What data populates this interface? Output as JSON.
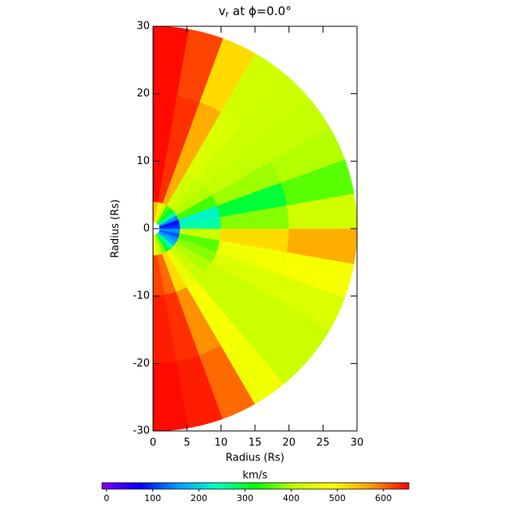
{
  "chart_data": {
    "type": "polar-heatmap",
    "title": "v",
    "title_sub": "r",
    "title_rest": " at ϕ=0.0°",
    "xlabel": "Radius (Rs)",
    "ylabel": "Radius (Rs)",
    "xlim": [
      0,
      30
    ],
    "xticks": [
      0,
      5,
      10,
      15,
      20,
      25,
      30
    ],
    "ylim": [
      -30,
      30
    ],
    "yticks": [
      -30,
      -20,
      -10,
      0,
      10,
      20,
      30
    ],
    "r_bins": [
      1,
      4,
      10,
      20,
      30
    ],
    "latitude_bins": [
      -90,
      -80,
      -70,
      -60,
      -50,
      -40,
      -30,
      -20,
      -10,
      0,
      10,
      20,
      30,
      40,
      50,
      60,
      70,
      80,
      90
    ],
    "values": [
      [
        500,
        620,
        640,
        650
      ],
      [
        420,
        600,
        630,
        640
      ],
      [
        380,
        520,
        580,
        600
      ],
      [
        300,
        460,
        480,
        470
      ],
      [
        250,
        420,
        420,
        420
      ],
      [
        180,
        400,
        420,
        420
      ],
      [
        150,
        380,
        440,
        440
      ],
      [
        120,
        360,
        470,
        480
      ],
      [
        150,
        420,
        520,
        560
      ],
      [
        100,
        250,
        380,
        430
      ],
      [
        80,
        230,
        300,
        360
      ],
      [
        150,
        350,
        390,
        400
      ],
      [
        250,
        400,
        410,
        410
      ],
      [
        300,
        410,
        420,
        420
      ],
      [
        350,
        430,
        440,
        430
      ],
      [
        420,
        560,
        560,
        520
      ],
      [
        500,
        630,
        630,
        620
      ],
      [
        550,
        650,
        650,
        650
      ]
    ],
    "colorbar_label": "km/s",
    "clim": [
      -10,
      655
    ],
    "colorbar_ticks": [
      0,
      100,
      200,
      300,
      400,
      500,
      600
    ],
    "colormap": [
      "#8000ff",
      "#0000ff",
      "#00a0ff",
      "#00ffc0",
      "#00ff00",
      "#c0ff00",
      "#ffff00",
      "#ffa000",
      "#ff0000"
    ]
  }
}
